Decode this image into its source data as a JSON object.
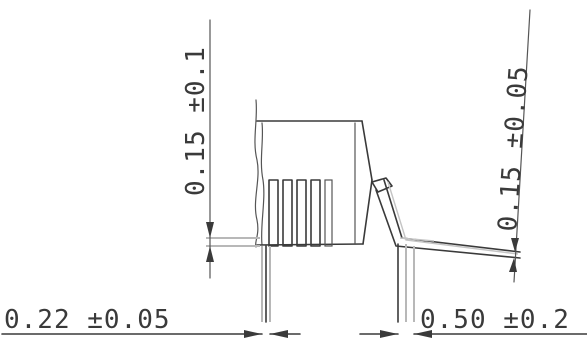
{
  "dimensions": {
    "lead_thickness_label": "0.22 ±0.05",
    "lead_length_label": "0.50 ±0.2",
    "body_standoff_label": "0.15 ±0.1",
    "lead_standoff_label": "0.15 ±0.05"
  }
}
